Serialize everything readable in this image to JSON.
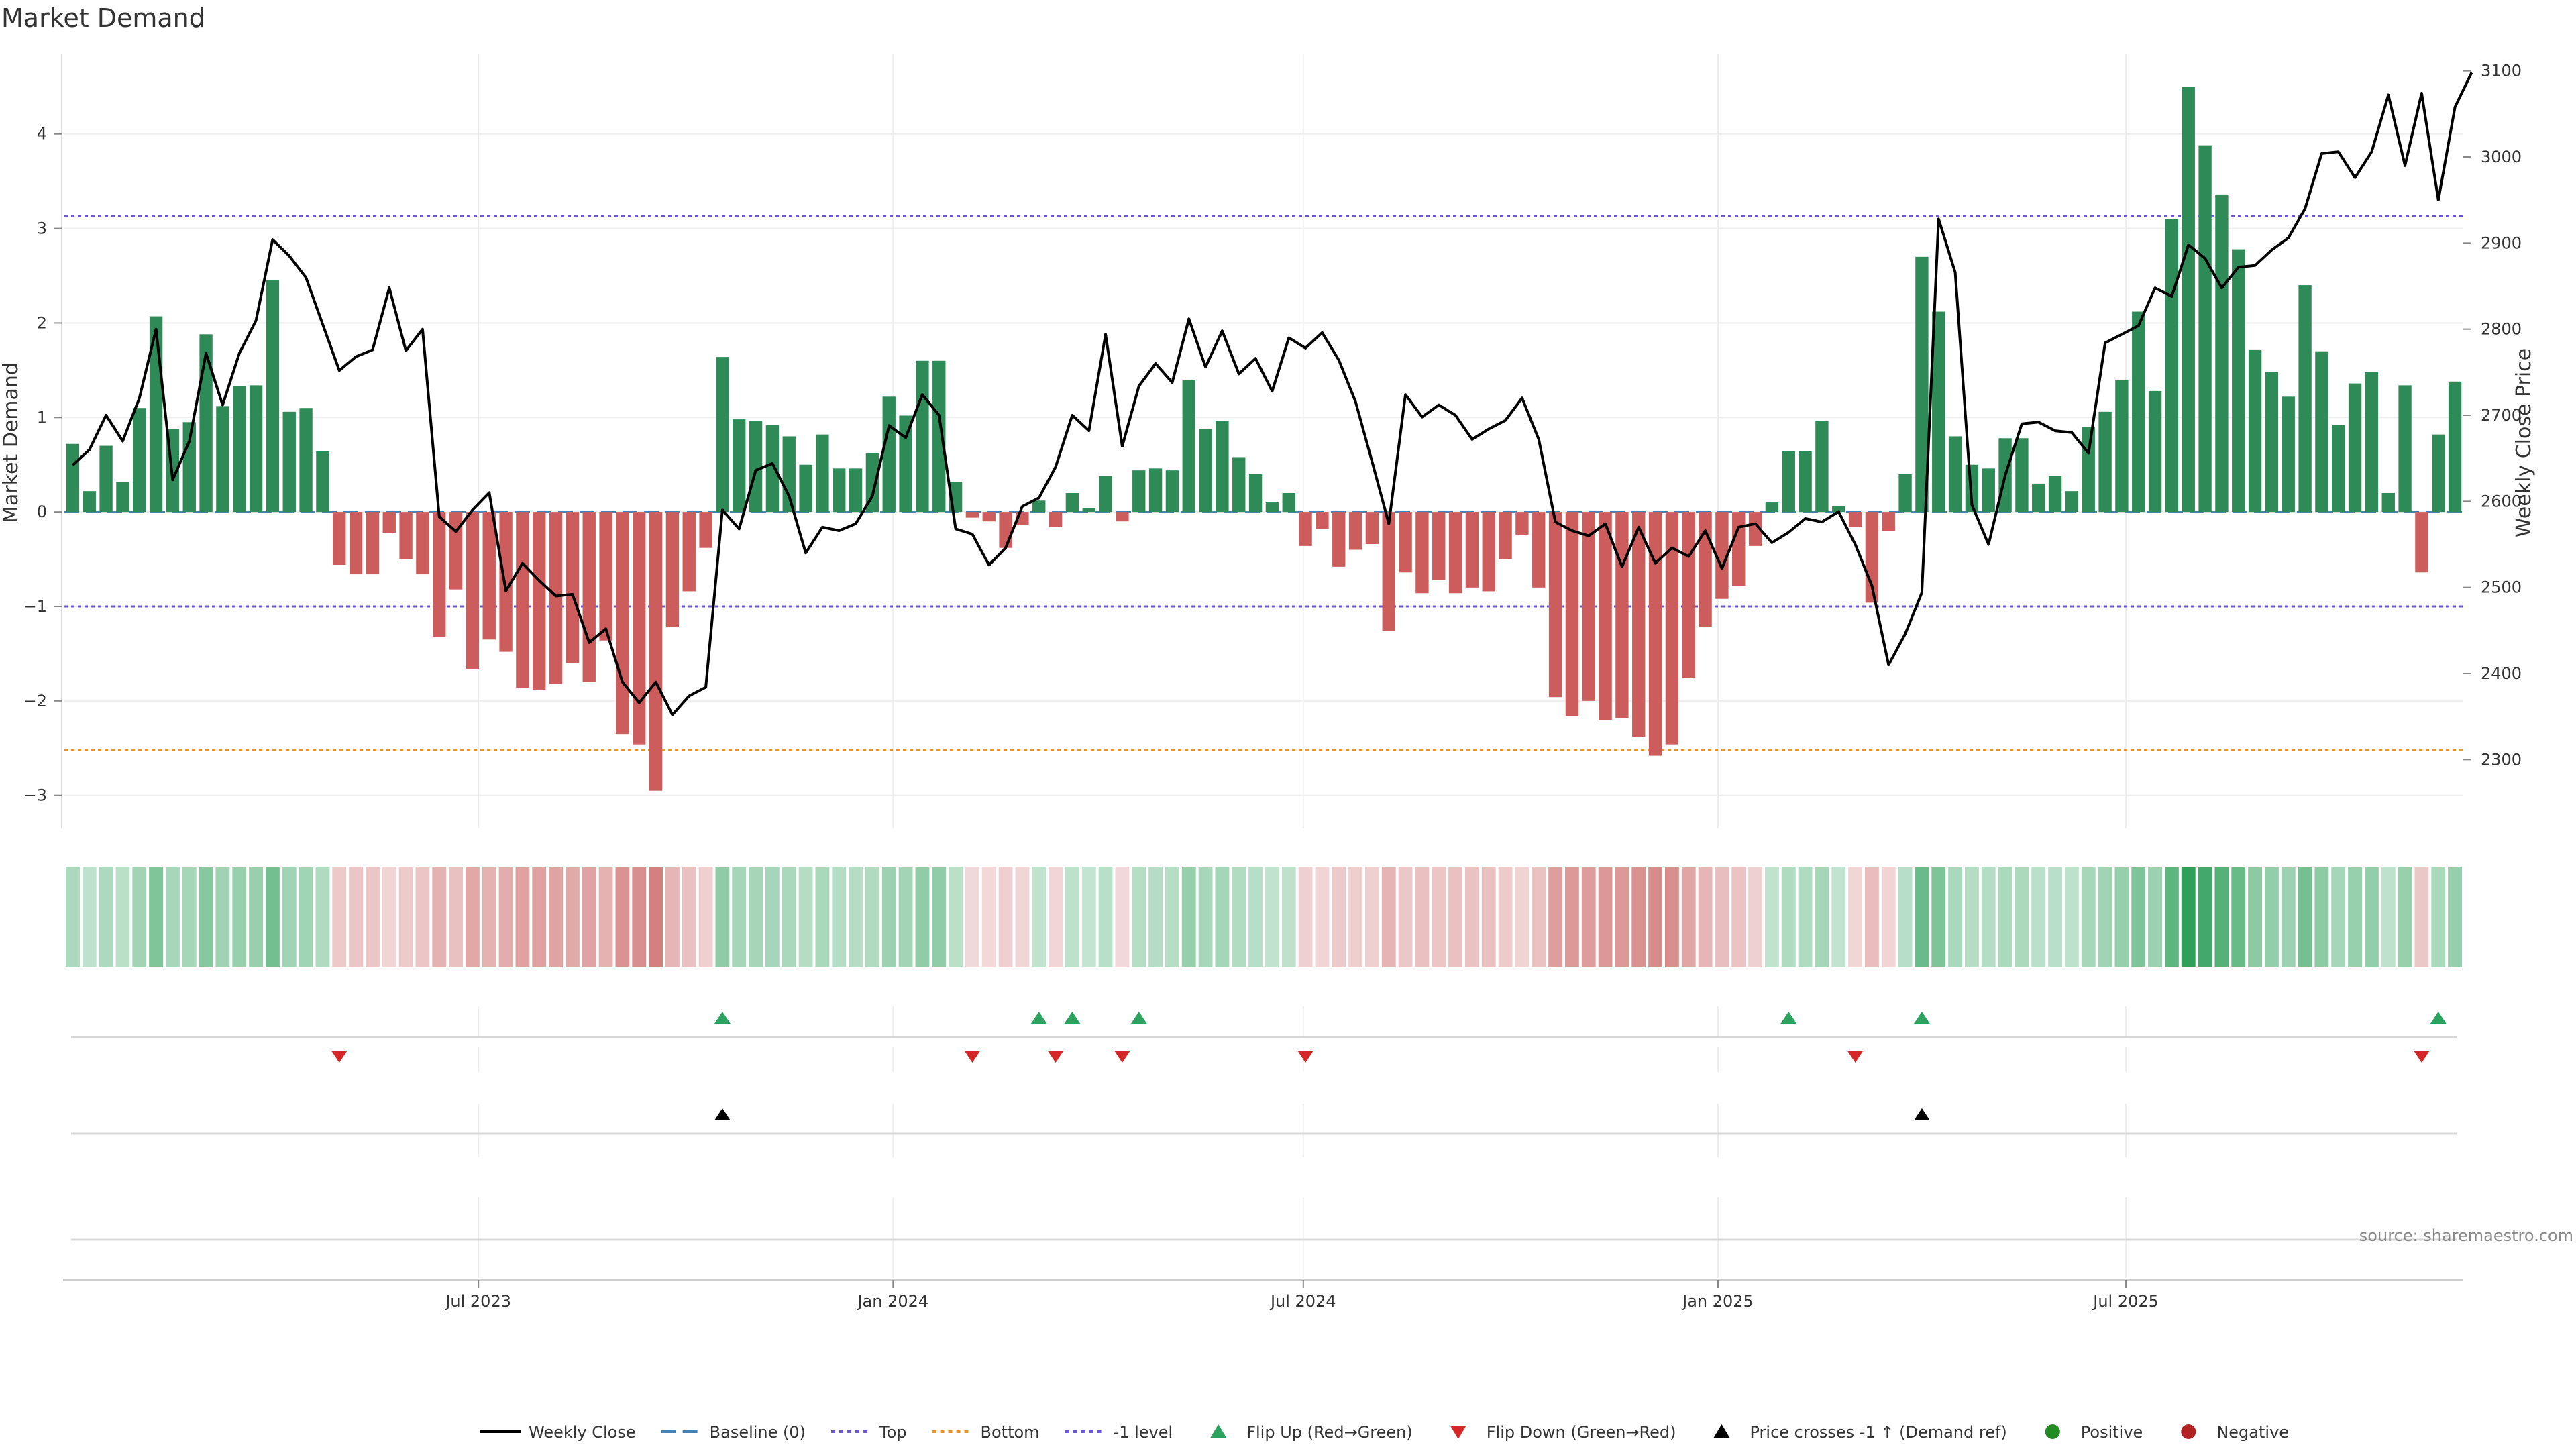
{
  "chart_data": {
    "type": "bar",
    "title": "Market Demand",
    "ylabel": "Market Demand",
    "y2label": "Weekly Close Price",
    "ylim": [
      -3.35,
      4.85
    ],
    "y2lim": [
      2220,
      3120
    ],
    "yticks": [
      "4",
      "3",
      "2",
      "1",
      "0",
      "−1",
      "−2",
      "−3"
    ],
    "y2ticks": [
      "3100",
      "3000",
      "2900",
      "2800",
      "2700",
      "2600",
      "2500",
      "2400",
      "2300"
    ],
    "x_start": "2023-01-02",
    "x_end": "2025-11-24",
    "xticks": [
      {
        "date": "2023-07-01",
        "label": "Jul 2023"
      },
      {
        "date": "2024-01-01",
        "label": "Jan 2024"
      },
      {
        "date": "2024-07-01",
        "label": "Jul 2024"
      },
      {
        "date": "2025-01-01",
        "label": "Jan 2025"
      },
      {
        "date": "2025-07-01",
        "label": "Jul 2025"
      }
    ],
    "levels": {
      "top": 3.13,
      "bottom": -2.52,
      "minus_one": -1.0,
      "baseline": 0
    },
    "series": [
      {
        "name": "Market Demand",
        "values": [
          0.72,
          0.22,
          0.7,
          0.32,
          1.1,
          2.07,
          0.88,
          0.95,
          1.88,
          1.12,
          1.33,
          1.34,
          2.45,
          1.06,
          1.1,
          0.64,
          -0.56,
          -0.66,
          -0.66,
          -0.22,
          -0.5,
          -0.66,
          -1.32,
          -0.82,
          -1.66,
          -1.35,
          -1.48,
          -1.86,
          -1.88,
          -1.82,
          -1.6,
          -1.8,
          -1.36,
          -2.35,
          -2.46,
          -2.95,
          -1.22,
          -0.84,
          -0.38,
          1.64,
          0.98,
          0.96,
          0.92,
          0.8,
          0.5,
          0.82,
          0.46,
          0.46,
          0.62,
          1.22,
          1.02,
          1.6,
          1.6,
          0.32,
          -0.06,
          -0.1,
          -0.38,
          -0.14,
          0.12,
          -0.16,
          0.2,
          0.04,
          0.38,
          -0.1,
          0.44,
          0.46,
          0.44,
          1.4,
          0.88,
          0.96,
          0.58,
          0.4,
          0.1,
          0.2,
          -0.36,
          -0.18,
          -0.58,
          -0.4,
          -0.34,
          -1.26,
          -0.64,
          -0.86,
          -0.72,
          -0.86,
          -0.8,
          -0.84,
          -0.5,
          -0.24,
          -0.8,
          -1.96,
          -2.16,
          -2.0,
          -2.2,
          -2.18,
          -2.38,
          -2.58,
          -2.46,
          -1.76,
          -1.22,
          -0.92,
          -0.78,
          -0.36,
          0.1,
          0.64,
          0.64,
          0.96,
          0.06,
          -0.16,
          -0.96,
          -0.2,
          0.4,
          2.7,
          2.12,
          0.8,
          0.5,
          0.46,
          0.78,
          0.78,
          0.3,
          0.38,
          0.22,
          0.9,
          1.06,
          1.4,
          2.12,
          1.28,
          3.1,
          4.5,
          3.88,
          3.36,
          2.78,
          1.72,
          1.48,
          1.22,
          2.4,
          1.7,
          0.92,
          1.36,
          1.48,
          0.2,
          1.34,
          -0.64,
          0.82,
          1.38
        ]
      },
      {
        "name": "Weekly Close",
        "values": [
          2642,
          2660,
          2700,
          2670,
          2720,
          2800,
          2625,
          2670,
          2772,
          2712,
          2772,
          2810,
          2904,
          2885,
          2860,
          2806,
          2752,
          2768,
          2776,
          2848,
          2775,
          2800,
          2582,
          2565,
          2590,
          2610,
          2496,
          2528,
          2508,
          2490,
          2492,
          2436,
          2452,
          2390,
          2366,
          2390,
          2352,
          2374,
          2384,
          2590,
          2568,
          2636,
          2644,
          2606,
          2540,
          2570,
          2566,
          2574,
          2606,
          2688,
          2674,
          2724,
          2700,
          2568,
          2562,
          2526,
          2546,
          2594,
          2604,
          2640,
          2700,
          2682,
          2794,
          2664,
          2734,
          2760,
          2738,
          2812,
          2756,
          2798,
          2748,
          2766,
          2728,
          2790,
          2778,
          2796,
          2764,
          2716,
          2646,
          2574,
          2724,
          2698,
          2712,
          2700,
          2672,
          2684,
          2694,
          2720,
          2672,
          2576,
          2566,
          2560,
          2574,
          2524,
          2570,
          2528,
          2546,
          2536,
          2566,
          2522,
          2570,
          2574,
          2552,
          2564,
          2580,
          2576,
          2588,
          2550,
          2502,
          2410,
          2446,
          2494,
          2928,
          2866,
          2596,
          2550,
          2630,
          2690,
          2692,
          2682,
          2680,
          2656,
          2784,
          2794,
          2804,
          2848,
          2838,
          2898,
          2882,
          2848,
          2872,
          2874,
          2892,
          2906,
          2940,
          3004,
          3006,
          2976,
          3006,
          3072,
          2990,
          3074,
          2950,
          3058,
          3098
        ]
      }
    ],
    "flip_up_weeks": [
      39,
      58,
      60,
      64,
      103,
      111,
      142
    ],
    "flip_down_weeks": [
      16,
      54,
      59,
      63,
      74,
      107,
      141
    ],
    "price_cross_weeks": [
      39,
      111
    ],
    "legend": {
      "placement": "bottom",
      "entries": [
        {
          "key": "weekly_close",
          "label": "Weekly Close"
        },
        {
          "key": "baseline",
          "label": "Baseline (0)"
        },
        {
          "key": "top",
          "label": "Top"
        },
        {
          "key": "bottom",
          "label": "Bottom"
        },
        {
          "key": "minus_one",
          "label": "-1 level"
        },
        {
          "key": "flip_up",
          "label": "Flip Up (Red→Green)"
        },
        {
          "key": "flip_down",
          "label": "Flip Down (Green→Red)"
        },
        {
          "key": "price_cross",
          "label": "Price crosses -1 ↑ (Demand ref)"
        },
        {
          "key": "positive",
          "label": "Positive"
        },
        {
          "key": "negative",
          "label": "Negative"
        }
      ]
    },
    "source": "source: sharemaestro.com",
    "colors": {
      "positive": "#2e8b57",
      "negative": "#cd5c5c",
      "price": "#000000",
      "baseline": "#4682b4",
      "top": "#6a5acd",
      "bottom": "#e69533",
      "minus_one": "#6a5acd",
      "flip_up": "#2ca25f",
      "flip_down": "#d62728",
      "price_cross": "#000000",
      "positive_dot": "#228b22",
      "negative_dot": "#b22222"
    }
  }
}
